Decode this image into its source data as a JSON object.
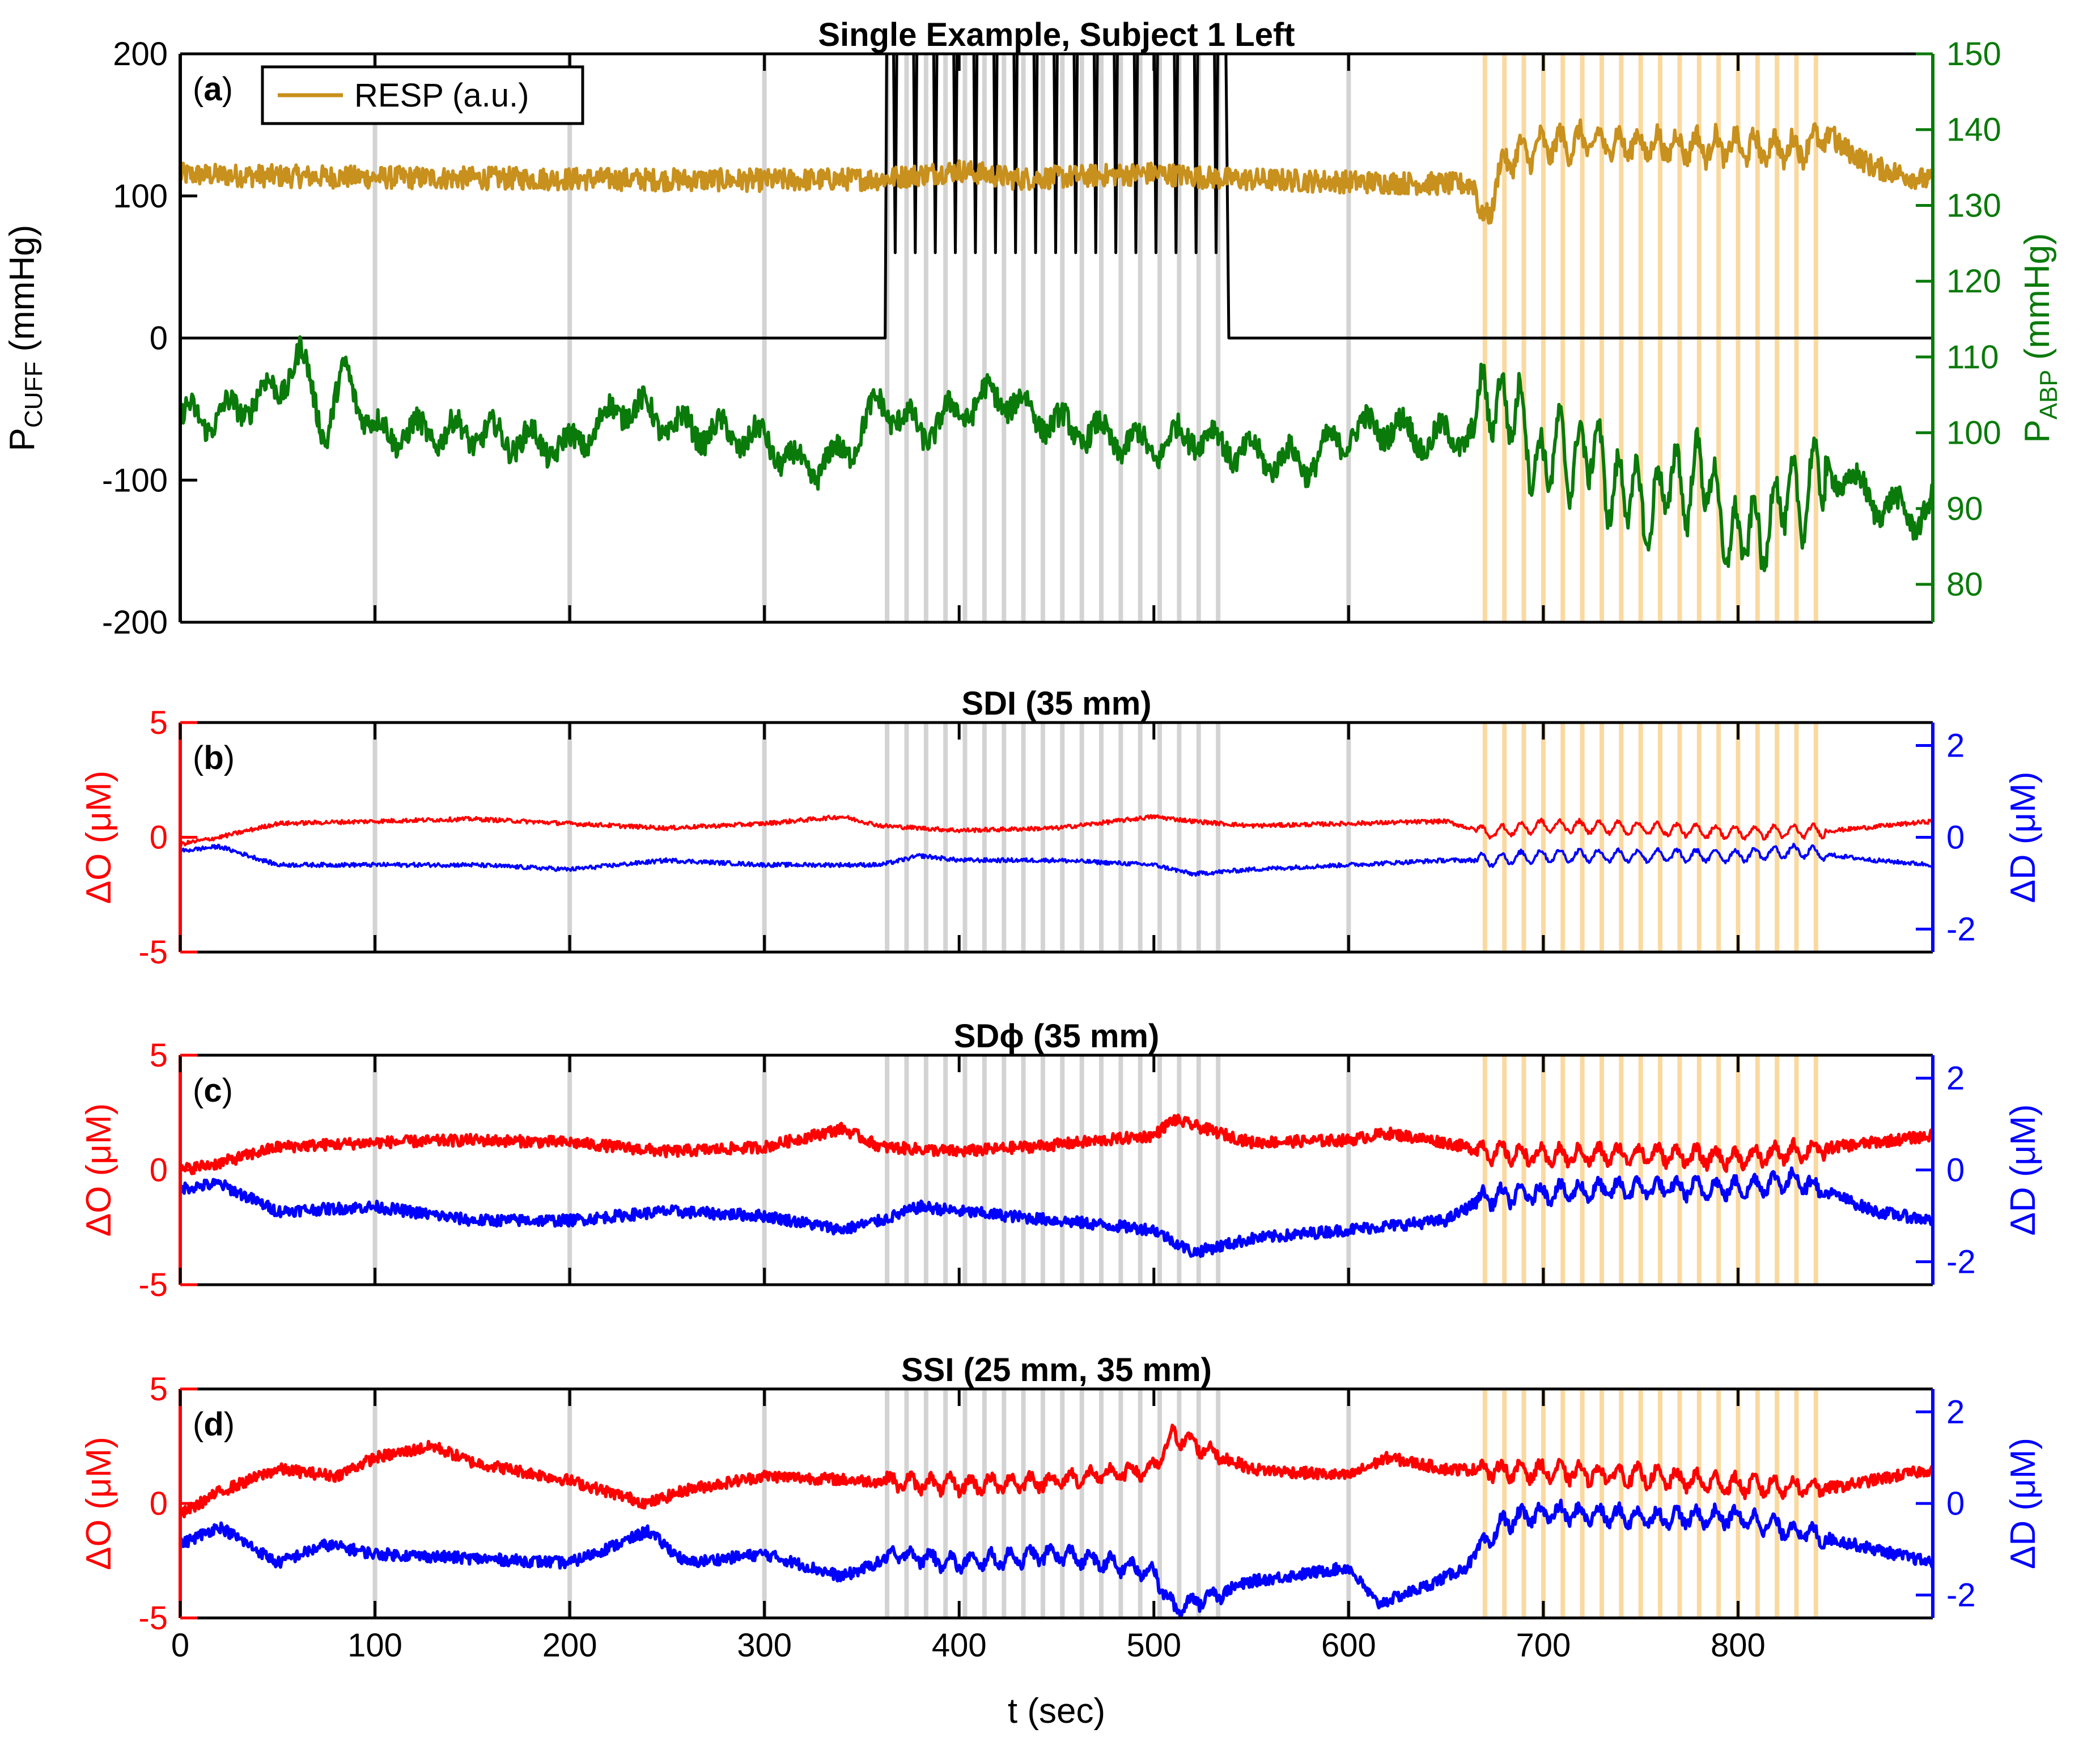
{
  "chart_data": [
    {
      "panel": "a",
      "type": "line",
      "title": "Single Example, Subject 1 Left",
      "panel_label_prefix": "(",
      "panel_label_letter": "a",
      "panel_label_suffix": ")",
      "ylabel_left": "P",
      "ylabel_left_sub": "CUFF",
      "ylabel_left_unit": " (mmHg)",
      "ylabel_right": "P",
      "ylabel_right_sub": "ABP",
      "ylabel_right_unit": " (mmHg)",
      "xlim": [
        0,
        900
      ],
      "ylim_left": [
        -200,
        200
      ],
      "ylim_right": [
        75,
        150
      ],
      "yticks_left": [
        -200,
        -100,
        0,
        100,
        200
      ],
      "yticks_right": [
        80,
        90,
        100,
        110,
        120,
        130,
        140,
        150
      ],
      "legend": {
        "position": "top-left",
        "entries": [
          {
            "name": "RESP (a.u.)",
            "color": "#c8901c"
          }
        ]
      },
      "series": [
        {
          "name": "P_CUFF",
          "axis": "left",
          "color": "#000000",
          "shape": "cuff-occlusion pulses",
          "baseline": 0,
          "peak": 200,
          "start": 362,
          "end": 537,
          "period": 10.3,
          "pulses": 17
        },
        {
          "name": "RESP (a.u.)",
          "axis": "left",
          "color": "#c8901c",
          "x": [
            0,
            100,
            200,
            300,
            360,
            400,
            430,
            500,
            537,
            600,
            665,
            668,
            680,
            700,
            720,
            750,
            780,
            800,
            830,
            845,
            870,
            900
          ],
          "y": [
            115,
            113,
            112,
            111,
            112,
            118,
            112,
            116,
            112,
            110,
            108,
            75,
            125,
            135,
            138,
            136,
            135,
            134,
            133,
            142,
            120,
            110
          ]
        },
        {
          "name": "P_ABP",
          "axis": "right",
          "color": "#0a7a0a",
          "x": [
            0,
            20,
            50,
            62,
            75,
            85,
            100,
            150,
            200,
            230,
            250,
            300,
            320,
            340,
            360,
            380,
            400,
            420,
            450,
            500,
            520,
            550,
            580,
            600,
            620,
            640,
            665,
            675,
            700,
            720,
            750,
            780,
            800,
            830,
            850,
            870,
            890,
            900
          ],
          "y": [
            102,
            102,
            106,
            110,
            100,
            108,
            100,
            100,
            98,
            104,
            101,
            99,
            95,
            97,
            104,
            100,
            103,
            105,
            101,
            98,
            100,
            97,
            96,
            100,
            101,
            99,
            100,
            106,
            96,
            98,
            90,
            95,
            85,
            92,
            95,
            91,
            89,
            90
          ]
        }
      ],
      "shaded_bands": [
        {
          "color": "#d3d3d3",
          "x": [
            100,
            200,
            300,
            363,
            373,
            383,
            393,
            403,
            413,
            423,
            433,
            443,
            453,
            463,
            473,
            483,
            493,
            503,
            513,
            523,
            533,
            600
          ]
        },
        {
          "color": "#fad9a0",
          "x": [
            670,
            680,
            690,
            700,
            710,
            720,
            730,
            740,
            750,
            760,
            770,
            780,
            790,
            800,
            810,
            820,
            830,
            840
          ]
        }
      ]
    },
    {
      "panel": "b",
      "type": "line",
      "title": "SDI (35 mm)",
      "panel_label_prefix": "(",
      "panel_label_letter": "b",
      "panel_label_suffix": ")",
      "ylabel_left": "ΔO (μM)",
      "ylabel_right": "ΔD (μM)",
      "xlim": [
        0,
        900
      ],
      "ylim_left": [
        -5,
        5
      ],
      "ylim_right": [
        -2.5,
        2.5
      ],
      "yticks_left": [
        -5,
        0,
        5
      ],
      "yticks_right": [
        -2,
        0,
        2
      ],
      "series": [
        {
          "name": "ΔO",
          "axis": "left",
          "color": "#ff0000",
          "x": [
            0,
            20,
            50,
            100,
            150,
            200,
            250,
            300,
            340,
            360,
            400,
            450,
            500,
            520,
            550,
            600,
            650,
            670,
            700,
            750,
            800,
            850,
            900
          ],
          "y": [
            -0.3,
            0,
            0.6,
            0.7,
            0.8,
            0.6,
            0.4,
            0.6,
            0.9,
            0.5,
            0.3,
            0.4,
            0.9,
            0.7,
            0.5,
            0.6,
            0.7,
            0.2,
            0.5,
            0.4,
            0.2,
            0.3,
            0.7
          ]
        },
        {
          "name": "ΔD",
          "axis": "right",
          "color": "#0000ff",
          "x": [
            0,
            20,
            50,
            100,
            150,
            200,
            250,
            300,
            360,
            380,
            400,
            450,
            500,
            520,
            550,
            600,
            650,
            670,
            700,
            750,
            800,
            830,
            870,
            900
          ],
          "y": [
            -0.3,
            -0.2,
            -0.6,
            -0.6,
            -0.6,
            -0.7,
            -0.5,
            -0.6,
            -0.6,
            -0.4,
            -0.5,
            -0.5,
            -0.6,
            -0.8,
            -0.7,
            -0.6,
            -0.5,
            -0.5,
            -0.4,
            -0.4,
            -0.4,
            -0.3,
            -0.5,
            -0.6
          ]
        }
      ]
    },
    {
      "panel": "c",
      "type": "line",
      "title": "SDϕ (35 mm)",
      "panel_label_prefix": "(",
      "panel_label_letter": "c",
      "panel_label_suffix": ")",
      "ylabel_left": "ΔO (μM)",
      "ylabel_right": "ΔD (μM)",
      "xlim": [
        0,
        900
      ],
      "ylim_left": [
        -5,
        5
      ],
      "ylim_right": [
        -2.5,
        2.5
      ],
      "yticks_left": [
        -5,
        0,
        5
      ],
      "yticks_right": [
        -2,
        0,
        2
      ],
      "series": [
        {
          "name": "ΔO",
          "axis": "left",
          "color": "#ff0000",
          "x": [
            0,
            20,
            50,
            100,
            150,
            200,
            250,
            300,
            340,
            360,
            400,
            450,
            500,
            510,
            550,
            600,
            620,
            650,
            670,
            700,
            750,
            800,
            850,
            900
          ],
          "y": [
            0,
            0.3,
            1,
            1.2,
            1.3,
            1.2,
            0.8,
            1,
            1.8,
            1,
            0.8,
            1.1,
            1.5,
            2.2,
            1.2,
            1.3,
            1.6,
            1.2,
            0.8,
            0.6,
            0.7,
            0.5,
            1,
            1.5
          ]
        },
        {
          "name": "ΔD",
          "axis": "right",
          "color": "#0000ff",
          "x": [
            0,
            20,
            50,
            100,
            150,
            200,
            250,
            300,
            340,
            360,
            380,
            400,
            450,
            500,
            520,
            550,
            600,
            650,
            670,
            700,
            750,
            800,
            830,
            870,
            900
          ],
          "y": [
            -0.4,
            -0.3,
            -0.9,
            -0.8,
            -1.1,
            -1.1,
            -0.9,
            -1,
            -1.3,
            -1.1,
            -0.8,
            -0.9,
            -1.1,
            -1.3,
            -1.8,
            -1.5,
            -1.3,
            -1.1,
            -0.6,
            -0.5,
            -0.4,
            -0.4,
            -0.2,
            -0.9,
            -1.1
          ]
        }
      ]
    },
    {
      "panel": "d",
      "type": "line",
      "title": "SSI (25 mm, 35 mm)",
      "panel_label_prefix": "(",
      "panel_label_letter": "d",
      "panel_label_suffix": ")",
      "ylabel_left": "ΔO (μM)",
      "ylabel_right": "ΔD (μM)",
      "xlabel": "t (sec)",
      "xlim": [
        0,
        900
      ],
      "ylim_left": [
        -5,
        5
      ],
      "ylim_right": [
        -2.5,
        2.5
      ],
      "xticks": [
        0,
        100,
        200,
        300,
        400,
        500,
        600,
        700,
        800
      ],
      "yticks_left": [
        -5,
        0,
        5
      ],
      "yticks_right": [
        -2,
        0,
        2
      ],
      "series": [
        {
          "name": "ΔO",
          "axis": "left",
          "color": "#ff0000",
          "x": [
            0,
            20,
            50,
            80,
            100,
            130,
            150,
            200,
            240,
            260,
            300,
            350,
            400,
            450,
            500,
            510,
            550,
            600,
            620,
            650,
            700,
            750,
            800,
            850,
            900
          ],
          "y": [
            -0.5,
            0.5,
            1.5,
            1.2,
            2,
            2.5,
            1.8,
            1,
            0,
            0.6,
            1.2,
            1,
            0.8,
            1,
            1.5,
            3,
            1.5,
            1.2,
            2,
            1.5,
            1.4,
            1.2,
            0.8,
            0.7,
            1.5
          ]
        },
        {
          "name": "ΔD",
          "axis": "right",
          "color": "#0000ff",
          "x": [
            0,
            20,
            50,
            75,
            100,
            150,
            200,
            230,
            240,
            260,
            300,
            340,
            370,
            400,
            450,
            500,
            510,
            550,
            600,
            615,
            640,
            660,
            680,
            700,
            750,
            800,
            850,
            900
          ],
          "y": [
            -0.9,
            -0.5,
            -1.3,
            -0.9,
            -1.1,
            -1.2,
            -1.3,
            -0.8,
            -0.6,
            -1.3,
            -1.1,
            -1.6,
            -1.1,
            -1.3,
            -1.1,
            -1.5,
            -2.3,
            -1.7,
            -1.4,
            -2.2,
            -1.8,
            -1.4,
            -0.4,
            -0.2,
            -0.3,
            -0.3,
            -0.8,
            -1.3
          ]
        }
      ]
    }
  ]
}
